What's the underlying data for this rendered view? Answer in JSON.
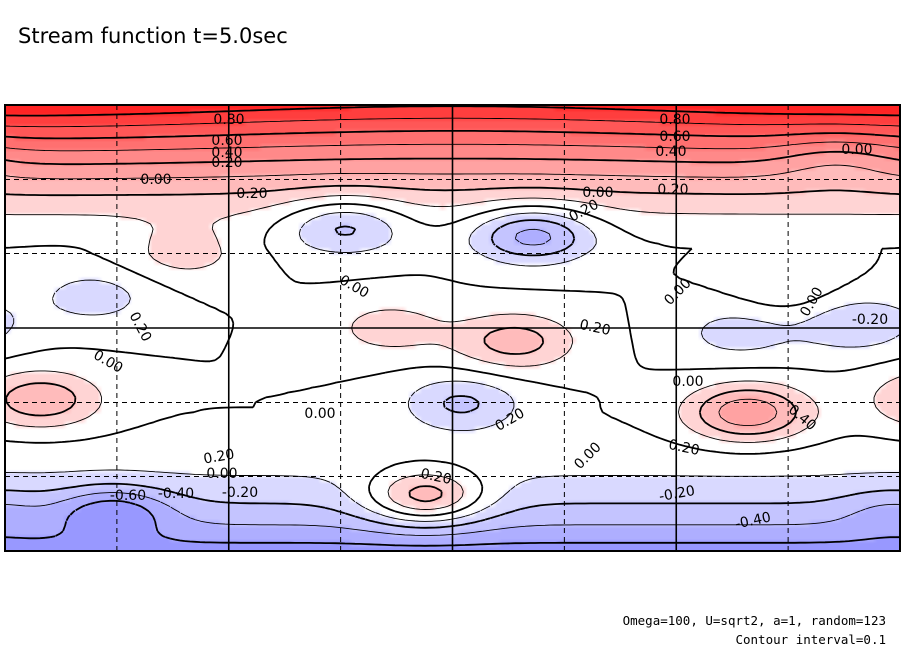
{
  "title": "Stream function t=5.0sec",
  "footer": {
    "params": "Omega=100, U=sqrt2, a=1, random=123",
    "interval": "Contour interval=0.1"
  },
  "chart_data": {
    "type": "heatmap",
    "title": "Stream function t=5.0sec",
    "variable": "stream function",
    "time_label": "t=5.0sec",
    "contour_interval": 0.1,
    "colors": {
      "positive": "#ff2020",
      "negative": "#3c3cff",
      "zero": "#ffffff"
    },
    "grid": true,
    "xlim": [
      0,
      1
    ],
    "ylim": [
      0,
      1
    ],
    "shading": "white at 0, deepening red for positive and blue for negative values",
    "labeled_contours": [
      "0.80",
      "0.60",
      "0.40",
      "0.20",
      "0.00",
      "-0.20",
      "-0.40",
      "-0.60"
    ],
    "features": [
      {
        "kind": "max",
        "x": 0.5,
        "y": 0.98,
        "value": 0.9
      },
      {
        "kind": "min",
        "x": 0.12,
        "y": 0.09,
        "value": -0.65
      },
      {
        "kind": "min",
        "x": 0.99,
        "y": 0.09,
        "value": -0.5
      },
      {
        "kind": "min",
        "x": 0.59,
        "y": 0.71,
        "value": -0.35
      },
      {
        "kind": "min",
        "x": 0.38,
        "y": 0.73,
        "value": -0.25
      },
      {
        "kind": "min",
        "x": 0.93,
        "y": 0.88,
        "value": -0.1
      },
      {
        "kind": "min",
        "x": 0.1,
        "y": 0.57,
        "value": -0.15
      },
      {
        "kind": "min",
        "x": 0.51,
        "y": 0.33,
        "value": -0.22
      },
      {
        "kind": "min",
        "x": 0.82,
        "y": 0.49,
        "value": -0.15
      },
      {
        "kind": "min",
        "x": 0.95,
        "y": 0.51,
        "value": -0.2
      },
      {
        "kind": "max",
        "x": 0.57,
        "y": 0.47,
        "value": 0.25
      },
      {
        "kind": "max",
        "x": 0.43,
        "y": 0.5,
        "value": 0.15
      },
      {
        "kind": "max",
        "x": 0.83,
        "y": 0.31,
        "value": 0.38
      },
      {
        "kind": "max",
        "x": 0.04,
        "y": 0.34,
        "value": 0.28
      },
      {
        "kind": "max",
        "x": 0.47,
        "y": 0.12,
        "value": 0.28
      },
      {
        "kind": "max",
        "x": 0.2,
        "y": 0.67,
        "value": 0.15
      },
      {
        "kind": "max",
        "x": 0.88,
        "y": 0.57,
        "value": 0.08
      }
    ]
  }
}
